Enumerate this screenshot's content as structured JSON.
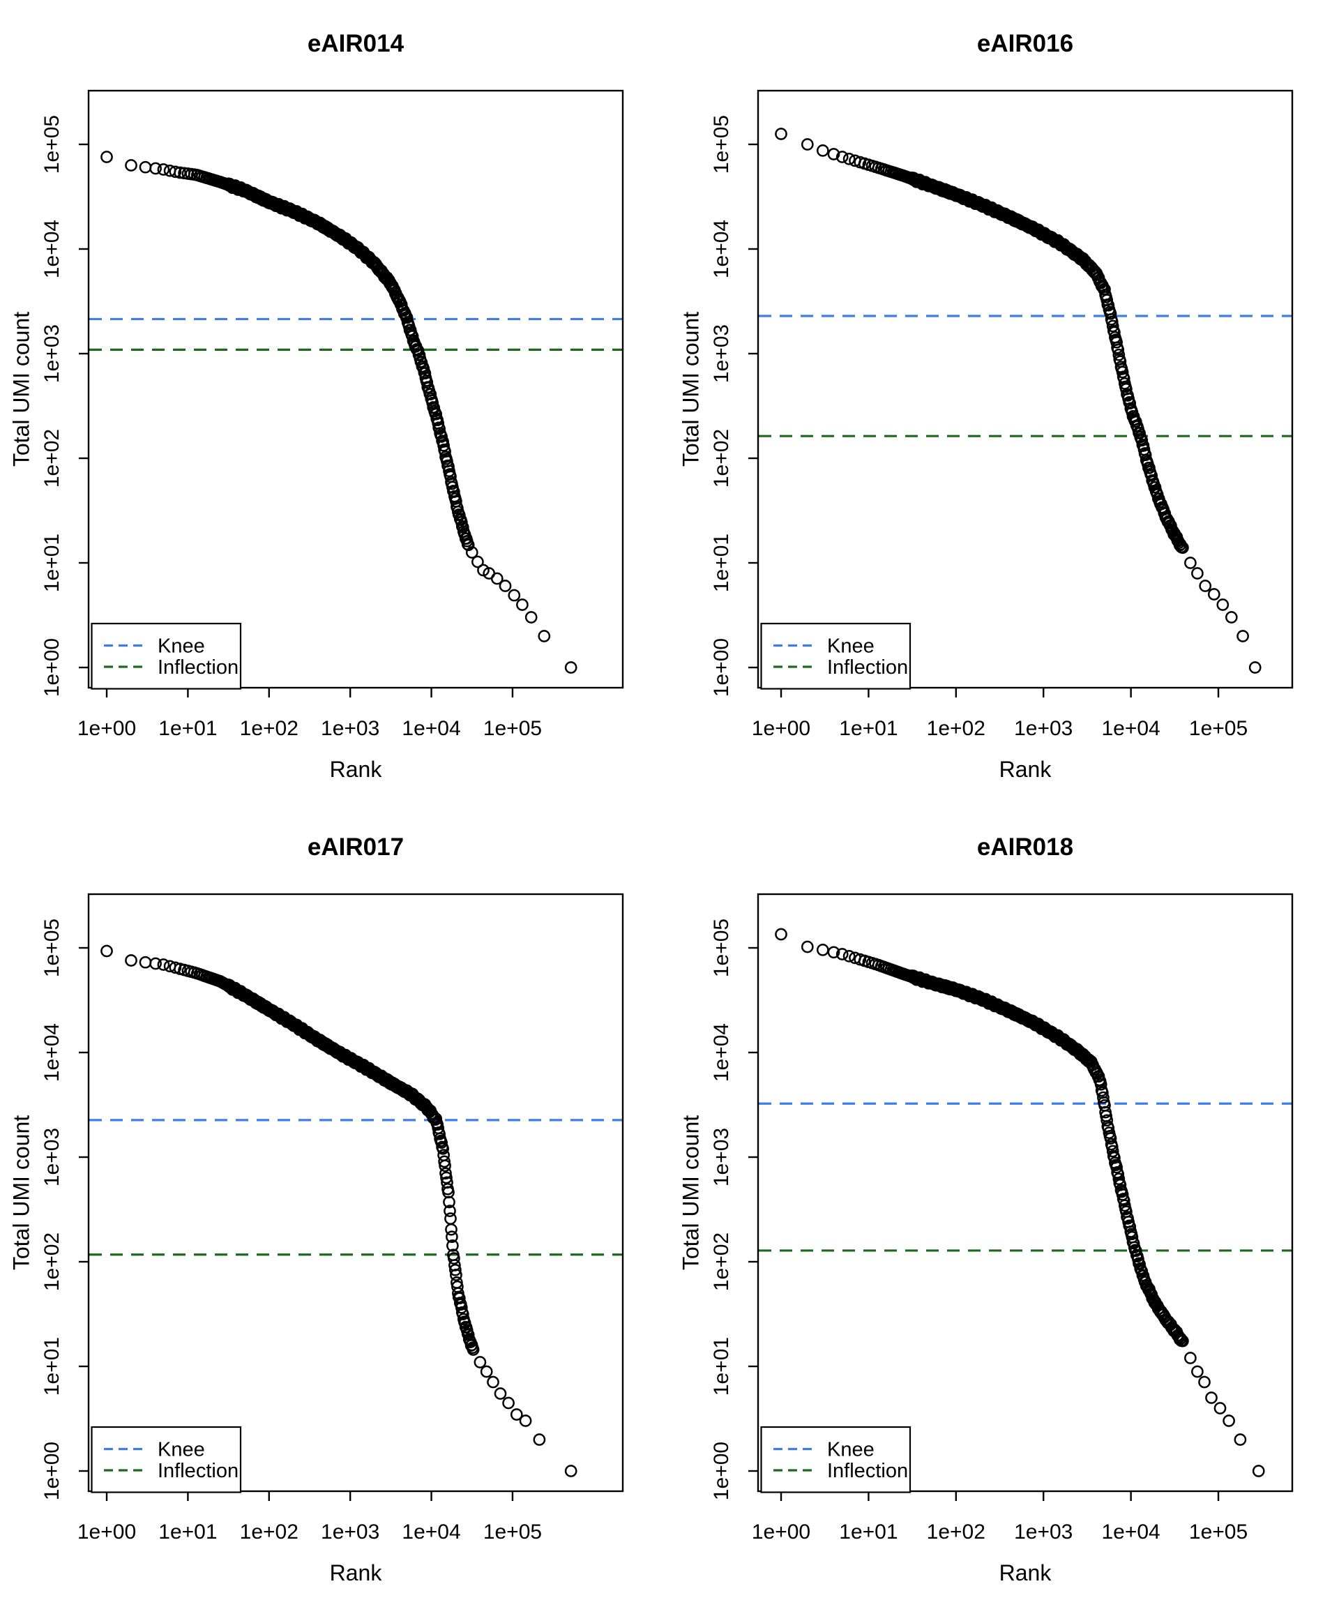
{
  "figure": {
    "background": "#ffffff",
    "point_color": "#000000",
    "axis_color": "#000000"
  },
  "legend": {
    "items": [
      {
        "label": "Knee",
        "color": "#3D7EEA",
        "style": "dashed"
      },
      {
        "label": "Inflection",
        "color": "#1D691D",
        "style": "dashed"
      }
    ]
  },
  "chart_data": [
    {
      "type": "scatter",
      "title": "eAIR014",
      "xlabel": "Rank",
      "ylabel": "Total UMI count",
      "x_scale": "log10",
      "y_scale": "log10",
      "x_tick_labels": [
        "1e+00",
        "1e+01",
        "1e+02",
        "1e+03",
        "1e+04",
        "1e+05"
      ],
      "y_tick_labels": [
        "1e+00",
        "1e+01",
        "1e+02",
        "1e+03",
        "1e+04",
        "1e+05"
      ],
      "x_tick_logs": [
        0,
        1,
        2,
        3,
        4,
        5
      ],
      "y_tick_logs": [
        0,
        1,
        2,
        3,
        4,
        5
      ],
      "xlim_log": [
        -0.2235,
        6.358
      ],
      "ylim_log": [
        -0.1933,
        5.5133
      ],
      "grid": false,
      "legend_position": "bottom-left",
      "knee_value": 2140,
      "inflection_value": 1090,
      "max_rank_log": 5.72,
      "first_point": {
        "rank": 1,
        "umi": 76000
      },
      "curve_loglog": [
        [
          0,
          4.88
        ],
        [
          0.3,
          4.8
        ],
        [
          0.5,
          4.78
        ],
        [
          0.7,
          4.76
        ],
        [
          0.9,
          4.73
        ],
        [
          1.1,
          4.71
        ],
        [
          1.4,
          4.64
        ],
        [
          1.7,
          4.56
        ],
        [
          2.0,
          4.45
        ],
        [
          2.3,
          4.36
        ],
        [
          2.6,
          4.25
        ],
        [
          2.9,
          4.11
        ],
        [
          3.1,
          4.0
        ],
        [
          3.3,
          3.86
        ],
        [
          3.5,
          3.67
        ],
        [
          3.62,
          3.48
        ],
        [
          3.7,
          3.33
        ],
        [
          3.78,
          3.12
        ],
        [
          3.83,
          3.03
        ],
        [
          3.9,
          2.86
        ],
        [
          3.98,
          2.62
        ],
        [
          4.06,
          2.4
        ],
        [
          4.15,
          2.12
        ],
        [
          4.24,
          1.8
        ],
        [
          4.32,
          1.52
        ],
        [
          4.4,
          1.3
        ],
        [
          4.46,
          1.15
        ]
      ],
      "tail_loglog": [
        [
          4.5,
          1.1
        ],
        [
          4.57,
          1.01
        ],
        [
          4.64,
          0.93
        ],
        [
          4.71,
          0.9
        ],
        [
          4.81,
          0.85
        ],
        [
          4.91,
          0.78
        ],
        [
          5.02,
          0.69
        ],
        [
          5.12,
          0.6
        ],
        [
          5.23,
          0.48
        ],
        [
          5.39,
          0.3
        ],
        [
          5.72,
          0.0
        ]
      ],
      "dense_range": [
        1.49,
        4.46
      ]
    },
    {
      "type": "scatter",
      "title": "eAIR016",
      "xlabel": "Rank",
      "ylabel": "Total UMI count",
      "x_scale": "log10",
      "y_scale": "log10",
      "x_tick_labels": [
        "1e+00",
        "1e+01",
        "1e+02",
        "1e+03",
        "1e+04",
        "1e+05"
      ],
      "y_tick_labels": [
        "1e+00",
        "1e+01",
        "1e+02",
        "1e+03",
        "1e+04",
        "1e+05"
      ],
      "x_tick_logs": [
        0,
        1,
        2,
        3,
        4,
        5
      ],
      "y_tick_logs": [
        0,
        1,
        2,
        3,
        4,
        5
      ],
      "xlim_log": [
        -0.2632,
        5.845
      ],
      "ylim_log": [
        -0.1933,
        5.5133
      ],
      "grid": false,
      "legend_position": "bottom-left",
      "knee_value": 2290,
      "inflection_value": 163,
      "max_rank_log": 5.42,
      "first_point": {
        "rank": 1,
        "umi": 124000
      },
      "curve_loglog": [
        [
          0,
          5.1
        ],
        [
          0.3,
          5.0
        ],
        [
          0.48,
          4.94
        ],
        [
          0.7,
          4.88
        ],
        [
          0.9,
          4.83
        ],
        [
          1.1,
          4.78
        ],
        [
          1.4,
          4.7
        ],
        [
          1.7,
          4.61
        ],
        [
          2.0,
          4.52
        ],
        [
          2.3,
          4.42
        ],
        [
          2.6,
          4.31
        ],
        [
          2.9,
          4.19
        ],
        [
          3.2,
          4.05
        ],
        [
          3.45,
          3.9
        ],
        [
          3.6,
          3.77
        ],
        [
          3.7,
          3.6
        ],
        [
          3.77,
          3.36
        ],
        [
          3.84,
          3.08
        ],
        [
          3.92,
          2.75
        ],
        [
          4.0,
          2.47
        ],
        [
          4.11,
          2.21
        ],
        [
          4.2,
          1.92
        ],
        [
          4.3,
          1.65
        ],
        [
          4.4,
          1.44
        ],
        [
          4.5,
          1.27
        ],
        [
          4.6,
          1.12
        ]
      ],
      "tail_loglog": [
        [
          4.68,
          1.0
        ],
        [
          4.76,
          0.9
        ],
        [
          4.85,
          0.78
        ],
        [
          4.95,
          0.7
        ],
        [
          5.05,
          0.6
        ],
        [
          5.15,
          0.48
        ],
        [
          5.28,
          0.3
        ],
        [
          5.42,
          0.0
        ]
      ],
      "dense_range": [
        1.49,
        4.6
      ]
    },
    {
      "type": "scatter",
      "title": "eAIR017",
      "xlabel": "Rank",
      "ylabel": "Total UMI count",
      "x_scale": "log10",
      "y_scale": "log10",
      "x_tick_labels": [
        "1e+00",
        "1e+01",
        "1e+02",
        "1e+03",
        "1e+04",
        "1e+05"
      ],
      "y_tick_labels": [
        "1e+00",
        "1e+01",
        "1e+02",
        "1e+03",
        "1e+04",
        "1e+05"
      ],
      "x_tick_logs": [
        0,
        1,
        2,
        3,
        4,
        5
      ],
      "y_tick_logs": [
        0,
        1,
        2,
        3,
        4,
        5
      ],
      "xlim_log": [
        -0.2235,
        6.358
      ],
      "ylim_log": [
        -0.1933,
        5.5133
      ],
      "grid": false,
      "legend_position": "bottom-left",
      "knee_value": 2260,
      "inflection_value": 117,
      "max_rank_log": 5.72,
      "first_point": {
        "rank": 1,
        "umi": 105000
      },
      "curve_loglog": [
        [
          0,
          4.97
        ],
        [
          0.3,
          4.88
        ],
        [
          0.5,
          4.86
        ],
        [
          0.7,
          4.84
        ],
        [
          0.9,
          4.8
        ],
        [
          1.1,
          4.76
        ],
        [
          1.4,
          4.68
        ],
        [
          1.7,
          4.55
        ],
        [
          2.0,
          4.41
        ],
        [
          2.3,
          4.27
        ],
        [
          2.6,
          4.12
        ],
        [
          2.9,
          3.98
        ],
        [
          3.2,
          3.85
        ],
        [
          3.5,
          3.71
        ],
        [
          3.75,
          3.6
        ],
        [
          3.95,
          3.47
        ],
        [
          4.06,
          3.35
        ],
        [
          4.14,
          3.08
        ],
        [
          4.21,
          2.65
        ],
        [
          4.27,
          2.07
        ],
        [
          4.33,
          1.7
        ],
        [
          4.4,
          1.45
        ],
        [
          4.46,
          1.28
        ],
        [
          4.52,
          1.15
        ]
      ],
      "tail_loglog": [
        [
          4.6,
          1.04
        ],
        [
          4.68,
          0.95
        ],
        [
          4.76,
          0.85
        ],
        [
          4.85,
          0.74
        ],
        [
          4.95,
          0.65
        ],
        [
          5.05,
          0.54
        ],
        [
          5.16,
          0.48
        ],
        [
          5.33,
          0.3
        ],
        [
          5.72,
          0.0
        ]
      ],
      "dense_range": [
        1.49,
        4.52
      ]
    },
    {
      "type": "scatter",
      "title": "eAIR018",
      "xlabel": "Rank",
      "ylabel": "Total UMI count",
      "x_scale": "log10",
      "y_scale": "log10",
      "x_tick_labels": [
        "1e+00",
        "1e+01",
        "1e+02",
        "1e+03",
        "1e+04",
        "1e+05"
      ],
      "y_tick_labels": [
        "1e+00",
        "1e+01",
        "1e+02",
        "1e+03",
        "1e+04",
        "1e+05"
      ],
      "x_tick_logs": [
        0,
        1,
        2,
        3,
        4,
        5
      ],
      "y_tick_logs": [
        0,
        1,
        2,
        3,
        4,
        5
      ],
      "xlim_log": [
        -0.2632,
        5.845
      ],
      "ylim_log": [
        -0.1933,
        5.5133
      ],
      "grid": false,
      "legend_position": "bottom-left",
      "knee_value": 3250,
      "inflection_value": 128,
      "max_rank_log": 5.46,
      "first_point": {
        "rank": 1,
        "umi": 135000
      },
      "curve_loglog": [
        [
          0,
          5.13
        ],
        [
          0.3,
          5.01
        ],
        [
          0.48,
          4.98
        ],
        [
          0.7,
          4.94
        ],
        [
          0.9,
          4.89
        ],
        [
          1.1,
          4.84
        ],
        [
          1.4,
          4.75
        ],
        [
          1.7,
          4.67
        ],
        [
          2.0,
          4.6
        ],
        [
          2.3,
          4.51
        ],
        [
          2.6,
          4.4
        ],
        [
          2.9,
          4.28
        ],
        [
          3.2,
          4.13
        ],
        [
          3.4,
          4.01
        ],
        [
          3.55,
          3.9
        ],
        [
          3.65,
          3.73
        ],
        [
          3.74,
          3.28
        ],
        [
          3.82,
          2.95
        ],
        [
          3.9,
          2.65
        ],
        [
          3.98,
          2.35
        ],
        [
          4.05,
          2.11
        ],
        [
          4.15,
          1.83
        ],
        [
          4.28,
          1.6
        ],
        [
          4.4,
          1.45
        ],
        [
          4.52,
          1.32
        ],
        [
          4.6,
          1.22
        ]
      ],
      "tail_loglog": [
        [
          4.68,
          1.08
        ],
        [
          4.76,
          0.95
        ],
        [
          4.84,
          0.85
        ],
        [
          4.92,
          0.7
        ],
        [
          5.02,
          0.6
        ],
        [
          5.12,
          0.48
        ],
        [
          5.25,
          0.3
        ],
        [
          5.46,
          0.0
        ]
      ],
      "dense_range": [
        1.49,
        4.6
      ]
    }
  ]
}
